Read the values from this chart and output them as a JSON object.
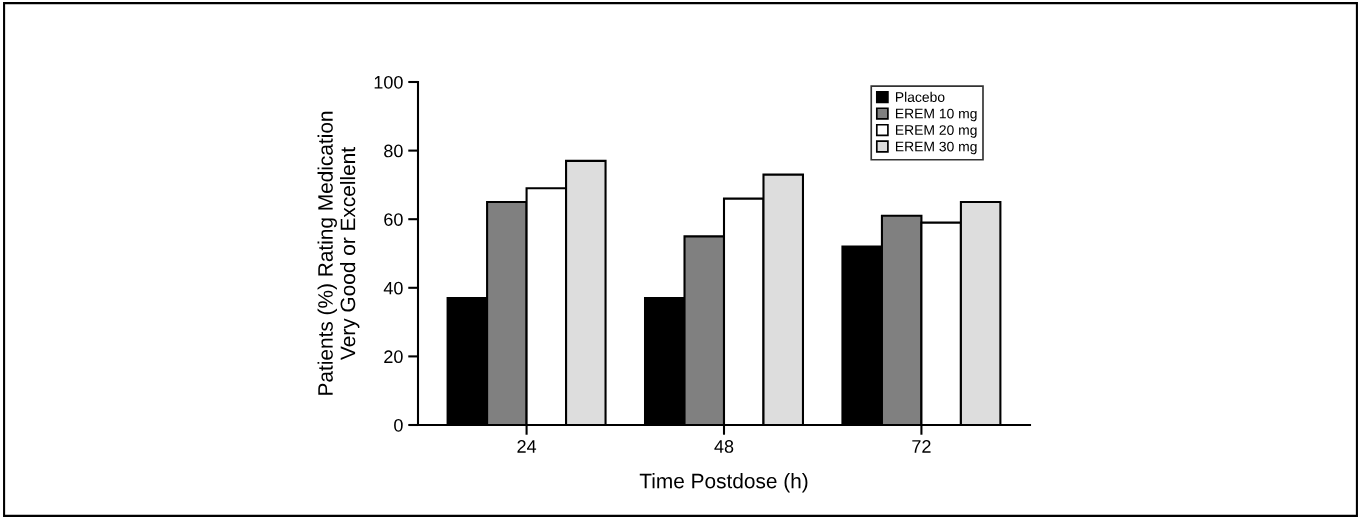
{
  "chart_data": {
    "type": "bar",
    "xlabel": "Time Postdose (h)",
    "ylabel": "Patients (%) Rating Medication\nVery Good or Excellent",
    "categories": [
      "24",
      "48",
      "72"
    ],
    "series": [
      {
        "name": "Placebo",
        "color": "#000000",
        "values": [
          37,
          37,
          52
        ]
      },
      {
        "name": "EREM 10 mg",
        "color": "#808080",
        "values": [
          65,
          55,
          61
        ]
      },
      {
        "name": "EREM 20 mg",
        "color": "#ffffff",
        "values": [
          69,
          66,
          59
        ]
      },
      {
        "name": "EREM 30 mg",
        "color": "#dddddd",
        "values": [
          77,
          73,
          65
        ]
      }
    ],
    "ylim": [
      0,
      100
    ],
    "yticks": [
      0,
      20,
      40,
      60,
      80,
      100
    ],
    "grid": false,
    "legend": "top right"
  }
}
